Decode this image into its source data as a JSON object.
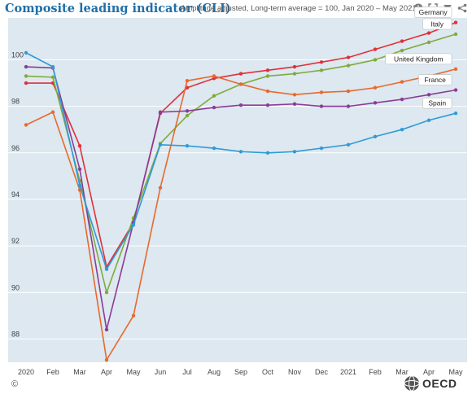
{
  "header": {
    "title": "Composite leading indicator (CLI)",
    "subtitle": "Amplitude adjusted, Long-term average = 100, Jan 2020 – May 2021"
  },
  "icons": [
    "info-icon",
    "expand-icon",
    "filter-icon",
    "share-icon"
  ],
  "footer": {
    "copyright": "©",
    "logo_text": "OECD"
  },
  "colors": {
    "background": "#dde8f0",
    "grid": "#ffffff",
    "title": "#1f6fa6"
  },
  "chart_data": {
    "type": "line",
    "title": "Composite leading indicator (CLI)",
    "subtitle": "Amplitude adjusted, Long-term average = 100, Jan 2020 – May 2021",
    "categories": [
      "2020",
      "Feb",
      "Mar",
      "Apr",
      "May",
      "Jun",
      "Jul",
      "Aug",
      "Sep",
      "Oct",
      "Nov",
      "Dec",
      "2021",
      "Feb",
      "Mar",
      "Apr",
      "May"
    ],
    "ylim": [
      87.0,
      101.8
    ],
    "yticks": [
      88,
      90,
      92,
      94,
      96,
      98,
      100
    ],
    "grid": true,
    "legend": "end-of-line labels",
    "series": [
      {
        "name": "Germany",
        "color": "#e0303a",
        "values": [
          99.0,
          99.0,
          96.3,
          91.1,
          93.0,
          97.7,
          98.8,
          99.2,
          99.4,
          99.55,
          99.7,
          99.9,
          100.1,
          100.45,
          100.8,
          101.15,
          101.6
        ]
      },
      {
        "name": "Italy",
        "color": "#7fab3c",
        "values": [
          99.3,
          99.25,
          94.8,
          90.0,
          93.2,
          96.4,
          97.6,
          98.45,
          98.95,
          99.3,
          99.4,
          99.55,
          99.75,
          100.0,
          100.4,
          100.75,
          101.1
        ]
      },
      {
        "name": "United Kingdom",
        "color": "#e8692c",
        "values": [
          97.2,
          97.75,
          94.4,
          87.1,
          89.0,
          94.5,
          99.1,
          99.3,
          98.95,
          98.65,
          98.5,
          98.6,
          98.65,
          98.8,
          99.05,
          99.3,
          99.6
        ]
      },
      {
        "name": "France",
        "color": "#8a3c95",
        "values": [
          99.7,
          99.65,
          95.3,
          88.4,
          93.0,
          97.75,
          97.8,
          97.95,
          98.05,
          98.05,
          98.1,
          98.0,
          98.0,
          98.15,
          98.3,
          98.5,
          98.7
        ]
      },
      {
        "name": "Spain",
        "color": "#2f9bd6",
        "values": [
          100.3,
          99.7,
          94.6,
          91.0,
          92.9,
          96.35,
          96.3,
          96.2,
          96.05,
          96.0,
          96.05,
          96.2,
          96.35,
          96.7,
          97.0,
          97.4,
          97.7
        ]
      }
    ]
  }
}
